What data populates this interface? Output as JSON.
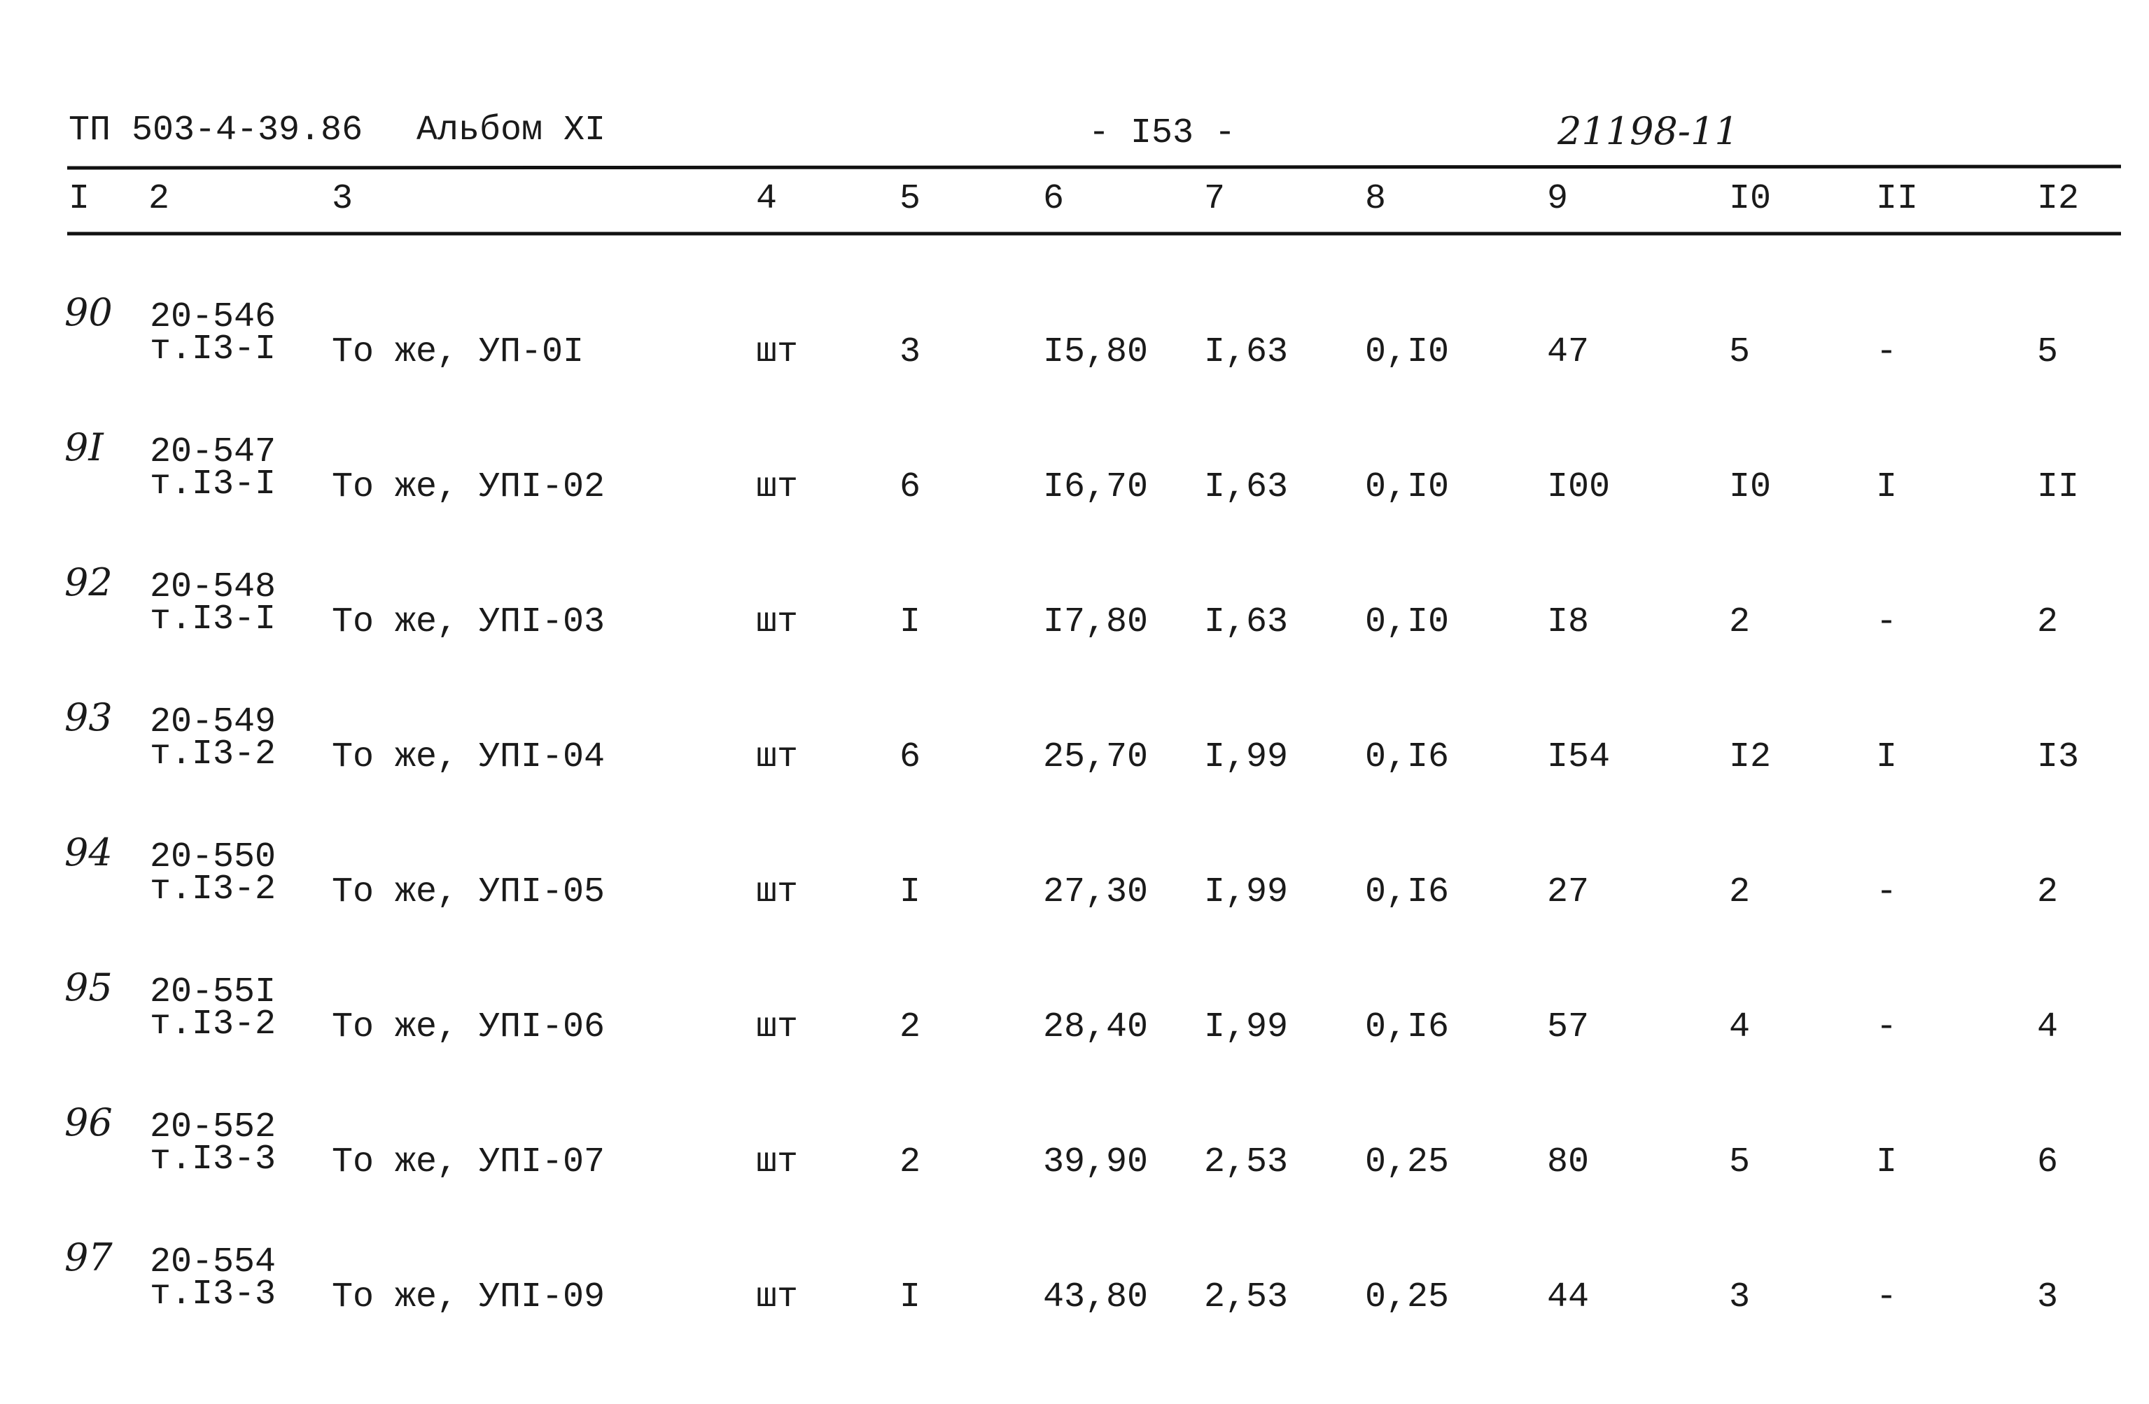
{
  "header": {
    "doc": "ТП 503-4-39.86",
    "album": "Альбом XI",
    "page": "- I53 -",
    "code": "21198-11"
  },
  "table": {
    "columns": [
      "I",
      "2",
      "3",
      "4",
      "5",
      "6",
      "7",
      "8",
      "9",
      "I0",
      "II",
      "I2"
    ],
    "rows": [
      {
        "num": "90",
        "code": "20-546",
        "ref": "т.I3-I",
        "cells": [
          "То же, УП-0I",
          "шт",
          "3",
          "I5,80",
          "I,63",
          "0,I0",
          "47",
          "5",
          "-",
          "5"
        ]
      },
      {
        "num": "9I",
        "code": "20-547",
        "ref": "т.I3-I",
        "cells": [
          "То же, УПI-02",
          "шт",
          "6",
          "I6,70",
          "I,63",
          "0,I0",
          "I00",
          "I0",
          "I",
          "II"
        ]
      },
      {
        "num": "92",
        "code": "20-548",
        "ref": "т.I3-I",
        "cells": [
          "То же, УПI-03",
          "шт",
          "I",
          "I7,80",
          "I,63",
          "0,I0",
          "I8",
          "2",
          "-",
          "2"
        ]
      },
      {
        "num": "93",
        "code": "20-549",
        "ref": "т.I3-2",
        "cells": [
          "То же, УПI-04",
          "шт",
          "6",
          "25,70",
          "I,99",
          "0,I6",
          "I54",
          "I2",
          "I",
          "I3"
        ]
      },
      {
        "num": "94",
        "code": "20-550",
        "ref": "т.I3-2",
        "cells": [
          "То же, УПI-05",
          "шт",
          "I",
          "27,30",
          "I,99",
          "0,I6",
          "27",
          "2",
          "-",
          "2"
        ]
      },
      {
        "num": "95",
        "code": "20-55I",
        "ref": "т.I3-2",
        "cells": [
          "То же, УПI-06",
          "шт",
          "2",
          "28,40",
          "I,99",
          "0,I6",
          "57",
          "4",
          "-",
          "4"
        ]
      },
      {
        "num": "96",
        "code": "20-552",
        "ref": "т.I3-3",
        "cells": [
          "То же, УПI-07",
          "шт",
          "2",
          "39,90",
          "2,53",
          "0,25",
          "80",
          "5",
          "I",
          "6"
        ]
      },
      {
        "num": "97",
        "code": "20-554",
        "ref": "т.I3-3",
        "cells": [
          "То же, УПI-09",
          "шт",
          "I",
          "43,80",
          "2,53",
          "0,25",
          "44",
          "3",
          "-",
          "3"
        ]
      }
    ]
  }
}
